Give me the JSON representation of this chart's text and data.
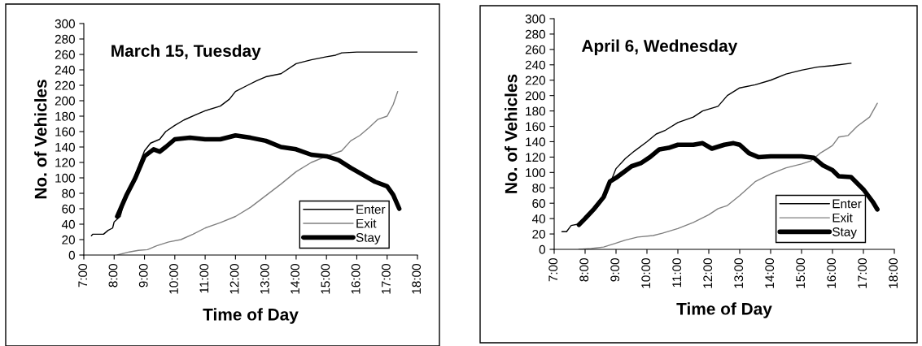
{
  "chart_data": [
    {
      "type": "line",
      "title": "March 15, Tuesday",
      "xlabel": "Time of Day",
      "ylabel": "No. of Vehicles",
      "xlim": [
        7,
        18
      ],
      "xticks": [
        {
          "value": 7,
          "label": "7:00"
        },
        {
          "value": 8,
          "label": "8:00"
        },
        {
          "value": 9,
          "label": "9:00"
        },
        {
          "value": 10,
          "label": "10:00"
        },
        {
          "value": 11,
          "label": "11:00"
        },
        {
          "value": 12,
          "label": "12:00"
        },
        {
          "value": 13,
          "label": "13:00"
        },
        {
          "value": 14,
          "label": "14:00"
        },
        {
          "value": 15,
          "label": "15:00"
        },
        {
          "value": 16,
          "label": "16:00"
        },
        {
          "value": 17,
          "label": "17:00"
        },
        {
          "value": 18,
          "label": "18:00"
        }
      ],
      "ylim": [
        0,
        300
      ],
      "yticks": [
        0,
        20,
        40,
        60,
        80,
        100,
        120,
        140,
        160,
        180,
        200,
        220,
        240,
        260,
        280,
        300
      ],
      "grid": false,
      "legend": "bottom right",
      "marker": "none",
      "line_style": "solid",
      "series": [
        {
          "name": "Enter",
          "color": "#000000",
          "x": [
            7.25,
            7.3,
            7.65,
            7.8,
            7.95,
            8.0,
            8.2,
            8.4,
            8.6,
            8.8,
            9.0,
            9.2,
            9.5,
            9.7,
            10.0,
            10.3,
            10.7,
            11.0,
            11.5,
            11.8,
            12.0,
            12.4,
            12.7,
            13.0,
            13.5,
            14.0,
            14.5,
            15.0,
            15.3,
            15.5,
            16.0,
            18.0
          ],
          "values": [
            25,
            27,
            27,
            32,
            35,
            43,
            50,
            78,
            95,
            115,
            135,
            145,
            150,
            160,
            168,
            175,
            182,
            187,
            193,
            202,
            212,
            220,
            226,
            231,
            235,
            248,
            253,
            257,
            259,
            262,
            263,
            263
          ]
        },
        {
          "name": "Exit",
          "color": "#808080",
          "x": [
            8.1,
            8.5,
            8.8,
            9.1,
            9.4,
            9.8,
            10.2,
            10.6,
            11.0,
            11.5,
            12.0,
            12.5,
            13.0,
            13.5,
            14.0,
            14.5,
            15.0,
            15.5,
            15.8,
            16.1,
            16.4,
            16.7,
            17.0,
            17.2,
            17.35
          ],
          "values": [
            0,
            4,
            6,
            7,
            12,
            17,
            20,
            27,
            35,
            42,
            50,
            62,
            77,
            92,
            108,
            120,
            128,
            135,
            148,
            155,
            165,
            176,
            180,
            195,
            212
          ]
        },
        {
          "name": "Stay",
          "color": "#000000",
          "x": [
            8.1,
            8.4,
            8.7,
            9.0,
            9.3,
            9.5,
            9.7,
            10.0,
            10.5,
            11.0,
            11.5,
            12.0,
            12.5,
            13.0,
            13.5,
            14.0,
            14.5,
            15.0,
            15.4,
            15.8,
            16.2,
            16.6,
            17.0,
            17.2,
            17.4
          ],
          "values": [
            50,
            77,
            100,
            128,
            137,
            134,
            140,
            150,
            152,
            150,
            150,
            155,
            152,
            148,
            140,
            137,
            130,
            128,
            123,
            113,
            104,
            95,
            89,
            78,
            60
          ]
        }
      ]
    },
    {
      "type": "line",
      "title": "April 6, Wednesday",
      "xlabel": "Time of Day",
      "ylabel": "No. of Vehicles",
      "xlim": [
        7,
        18
      ],
      "xticks": [
        {
          "value": 7,
          "label": "7:00"
        },
        {
          "value": 8,
          "label": "8:00"
        },
        {
          "value": 9,
          "label": "9:00"
        },
        {
          "value": 10,
          "label": "10:00"
        },
        {
          "value": 11,
          "label": "11:00"
        },
        {
          "value": 12,
          "label": "12:00"
        },
        {
          "value": 13,
          "label": "13:00"
        },
        {
          "value": 14,
          "label": "14:00"
        },
        {
          "value": 15,
          "label": "15:00"
        },
        {
          "value": 16,
          "label": "16:00"
        },
        {
          "value": 17,
          "label": "17:00"
        },
        {
          "value": 18,
          "label": "18:00"
        }
      ],
      "ylim": [
        0,
        300
      ],
      "yticks": [
        0,
        20,
        40,
        60,
        80,
        100,
        120,
        140,
        160,
        180,
        200,
        220,
        240,
        260,
        280,
        300
      ],
      "grid": false,
      "legend": "bottom right",
      "marker": "none",
      "line_style": "solid",
      "series": [
        {
          "name": "Enter",
          "color": "#000000",
          "x": [
            7.25,
            7.4,
            7.55,
            7.8,
            8.0,
            8.5,
            8.8,
            9.0,
            9.3,
            9.6,
            10.0,
            10.3,
            10.6,
            11.0,
            11.5,
            11.8,
            12.3,
            12.6,
            13.0,
            13.5,
            14.0,
            14.5,
            15.0,
            15.5,
            16.0,
            16.6
          ],
          "values": [
            23,
            23,
            31,
            33,
            43,
            62,
            85,
            105,
            118,
            128,
            140,
            150,
            155,
            165,
            172,
            180,
            186,
            200,
            210,
            214,
            220,
            228,
            233,
            237,
            239,
            242
          ]
        },
        {
          "name": "Exit",
          "color": "#808080",
          "x": [
            7.8,
            8.2,
            8.6,
            9.0,
            9.3,
            9.7,
            10.2,
            10.5,
            11.0,
            11.5,
            12.0,
            12.3,
            12.6,
            13.0,
            13.5,
            14.0,
            14.5,
            15.0,
            15.3,
            15.6,
            16.0,
            16.2,
            16.5,
            16.8,
            17.2,
            17.45
          ],
          "values": [
            0,
            1,
            3,
            8,
            12,
            16,
            18,
            21,
            27,
            35,
            45,
            53,
            57,
            70,
            88,
            98,
            106,
            111,
            115,
            125,
            135,
            146,
            148,
            160,
            172,
            190
          ]
        },
        {
          "name": "Stay",
          "color": "#000000",
          "x": [
            7.8,
            8.0,
            8.3,
            8.6,
            8.8,
            9.0,
            9.3,
            9.5,
            9.8,
            10.1,
            10.4,
            10.7,
            11.0,
            11.5,
            11.8,
            12.1,
            12.5,
            12.8,
            13.0,
            13.3,
            13.6,
            14.0,
            14.5,
            15.0,
            15.4,
            15.7,
            16.0,
            16.2,
            16.6,
            17.0,
            17.3,
            17.45
          ],
          "values": [
            32,
            40,
            53,
            68,
            88,
            93,
            102,
            108,
            112,
            120,
            130,
            132,
            136,
            136,
            138,
            131,
            136,
            138,
            136,
            125,
            120,
            121,
            121,
            121,
            119,
            109,
            103,
            95,
            94,
            78,
            62,
            52
          ]
        }
      ]
    }
  ]
}
